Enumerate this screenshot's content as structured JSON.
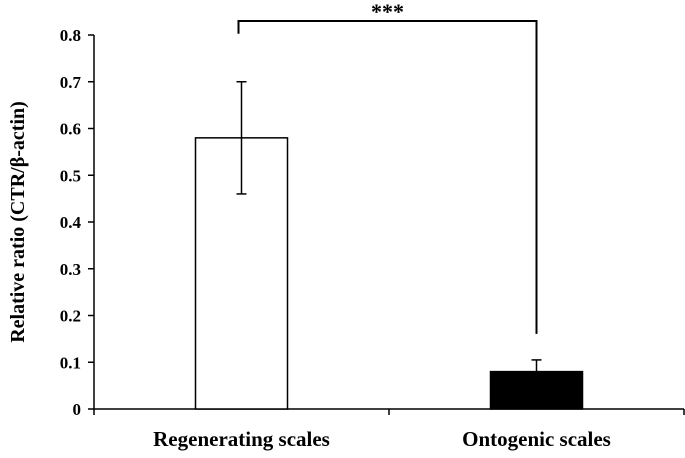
{
  "chart_data": {
    "type": "bar",
    "title": "",
    "xlabel": "",
    "ylabel": "Relative ratio (CTR/β-actin)",
    "ylim": [
      0,
      0.8
    ],
    "yticks": [
      "0",
      "0.1",
      "0.2",
      "0.3",
      "0.4",
      "0.5",
      "0.6",
      "0.7",
      "0.8"
    ],
    "categories": [
      "Regenerating scales",
      "Ontogenic scales"
    ],
    "values": [
      0.58,
      0.08
    ],
    "errors": [
      0.12,
      0.025
    ],
    "bar_colors": [
      "#ffffff",
      "#000000"
    ],
    "significance": {
      "label": "***",
      "between": [
        0,
        1
      ]
    },
    "grid": false,
    "legend": "none"
  }
}
